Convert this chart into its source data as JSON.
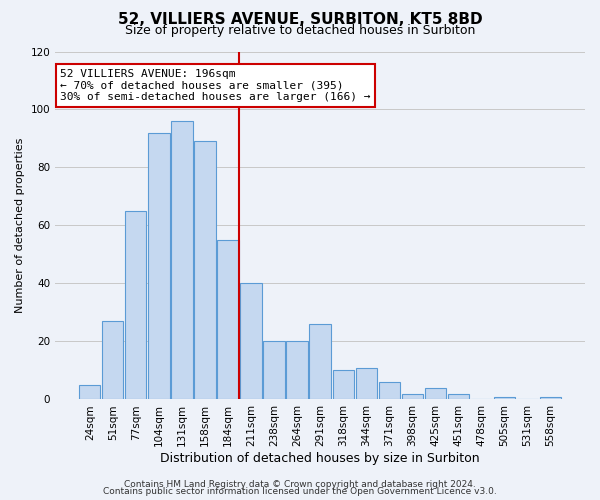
{
  "title": "52, VILLIERS AVENUE, SURBITON, KT5 8BD",
  "subtitle": "Size of property relative to detached houses in Surbiton",
  "xlabel": "Distribution of detached houses by size in Surbiton",
  "ylabel": "Number of detached properties",
  "categories": [
    "24sqm",
    "51sqm",
    "77sqm",
    "104sqm",
    "131sqm",
    "158sqm",
    "184sqm",
    "211sqm",
    "238sqm",
    "264sqm",
    "291sqm",
    "318sqm",
    "344sqm",
    "371sqm",
    "398sqm",
    "425sqm",
    "451sqm",
    "478sqm",
    "505sqm",
    "531sqm",
    "558sqm"
  ],
  "values": [
    5,
    27,
    65,
    92,
    96,
    89,
    55,
    40,
    20,
    20,
    26,
    10,
    11,
    6,
    2,
    4,
    2,
    0,
    1,
    0,
    1
  ],
  "bar_color": "#c5d8f0",
  "bar_edge_color": "#5b9bd5",
  "bar_edge_width": 0.8,
  "vline_color": "#cc0000",
  "annotation_box_text": "52 VILLIERS AVENUE: 196sqm\n← 70% of detached houses are smaller (395)\n30% of semi-detached houses are larger (166) →",
  "annotation_box_facecolor": "white",
  "annotation_box_edgecolor": "#cc0000",
  "ylim": [
    0,
    120
  ],
  "yticks": [
    0,
    20,
    40,
    60,
    80,
    100,
    120
  ],
  "grid_color": "#c8c8c8",
  "bg_color": "#eef2f9",
  "footer_line1": "Contains HM Land Registry data © Crown copyright and database right 2024.",
  "footer_line2": "Contains public sector information licensed under the Open Government Licence v3.0.",
  "title_fontsize": 11,
  "subtitle_fontsize": 9,
  "xlabel_fontsize": 9,
  "ylabel_fontsize": 8,
  "tick_fontsize": 7.5,
  "footer_fontsize": 6.5,
  "annotation_fontsize": 8
}
